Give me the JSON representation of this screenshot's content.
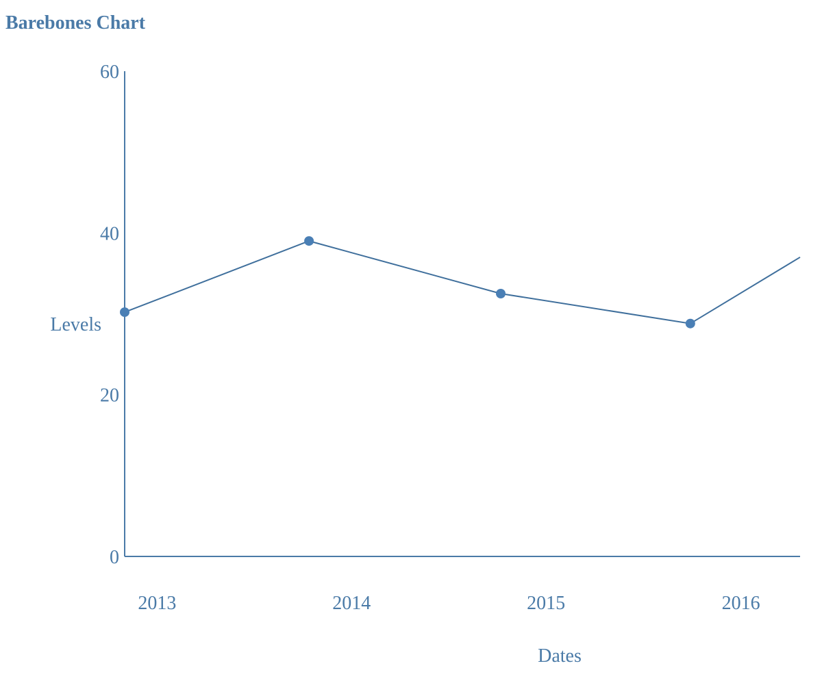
{
  "chart_data": {
    "type": "line",
    "title": "Barebones Chart",
    "xlabel": "Dates",
    "ylabel": "Levels",
    "ylim": [
      0,
      60
    ],
    "yticks": [
      0,
      20,
      40,
      60
    ],
    "xlim": [
      "2012-12-30",
      "2016-06-20"
    ],
    "xticks": [
      {
        "value": "2013-03-01",
        "label": "2013"
      },
      {
        "value": "2014-03-01",
        "label": "2014"
      },
      {
        "value": "2015-03-01",
        "label": "2015"
      },
      {
        "value": "2016-03-01",
        "label": "2016"
      }
    ],
    "grid": false,
    "legend": "none",
    "colors": {
      "axis": "#4a7aa7",
      "line": "#3f6f9c",
      "point": "#4a7fb5"
    },
    "series": [
      {
        "x": [
          "2012-12-30",
          "2013-12-11",
          "2014-12-06",
          "2015-11-27",
          "2016-06-20"
        ],
        "values": [
          30.2,
          39.0,
          32.5,
          28.8,
          37.0
        ],
        "markers": [
          true,
          true,
          true,
          true,
          false
        ]
      }
    ]
  }
}
